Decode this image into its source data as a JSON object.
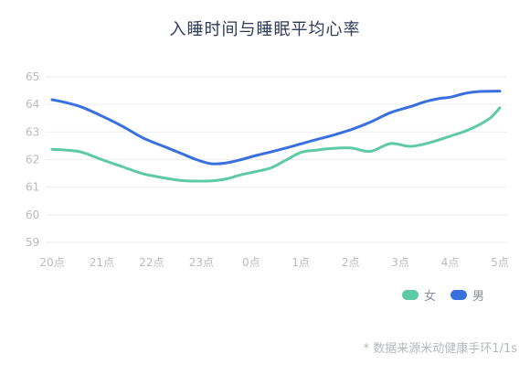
{
  "title": "入睡时间与睡眠平均心率",
  "footnote": "* 数据来源米动健康手环1/1s",
  "colors": {
    "female": "#5dcaa5",
    "male": "#3a6fe0",
    "grid": "#eeeeee",
    "tick": "#bbbbbb"
  },
  "chart_data": {
    "type": "line",
    "title": "入睡时间与睡眠平均心率",
    "xlabel": "",
    "ylabel": "",
    "categories": [
      "20点",
      "21点",
      "22点",
      "23点",
      "0点",
      "1点",
      "2点",
      "3点",
      "4点",
      "5点"
    ],
    "yticks": [
      59,
      60,
      61,
      62,
      63,
      64,
      65
    ],
    "ylim": [
      59,
      65
    ],
    "grid": true,
    "legend_position": "bottom-right",
    "series": [
      {
        "name": "女",
        "color": "#5dcaa5",
        "x": [
          0,
          0.3,
          0.6,
          1.0,
          1.4,
          1.8,
          2.0,
          2.3,
          2.6,
          2.9,
          3.2,
          3.5,
          3.8,
          4.1,
          4.4,
          4.7,
          5.0,
          5.3,
          5.6,
          6.0,
          6.4,
          6.8,
          7.2,
          7.6,
          8.0,
          8.4,
          8.8,
          9.0
        ],
        "values": [
          62.37,
          62.34,
          62.27,
          62.0,
          61.75,
          61.5,
          61.42,
          61.32,
          61.24,
          61.22,
          61.23,
          61.3,
          61.45,
          61.57,
          61.7,
          61.98,
          62.26,
          62.34,
          62.4,
          62.42,
          62.3,
          62.58,
          62.48,
          62.62,
          62.85,
          63.1,
          63.5,
          63.88
        ]
      },
      {
        "name": "男",
        "color": "#3a6fe0",
        "x": [
          0,
          0.3,
          0.6,
          1.0,
          1.4,
          1.8,
          2.0,
          2.3,
          2.6,
          2.9,
          3.2,
          3.5,
          3.8,
          4.1,
          4.4,
          4.7,
          5.0,
          5.3,
          5.6,
          6.0,
          6.4,
          6.8,
          7.2,
          7.5,
          7.8,
          8.0,
          8.3,
          8.6,
          8.9,
          9.0
        ],
        "values": [
          64.17,
          64.06,
          63.9,
          63.58,
          63.22,
          62.81,
          62.65,
          62.44,
          62.22,
          62.0,
          61.85,
          61.88,
          62.0,
          62.15,
          62.28,
          62.42,
          62.57,
          62.72,
          62.86,
          63.08,
          63.36,
          63.7,
          63.92,
          64.1,
          64.22,
          64.26,
          64.4,
          64.47,
          64.48,
          64.48
        ]
      }
    ]
  }
}
